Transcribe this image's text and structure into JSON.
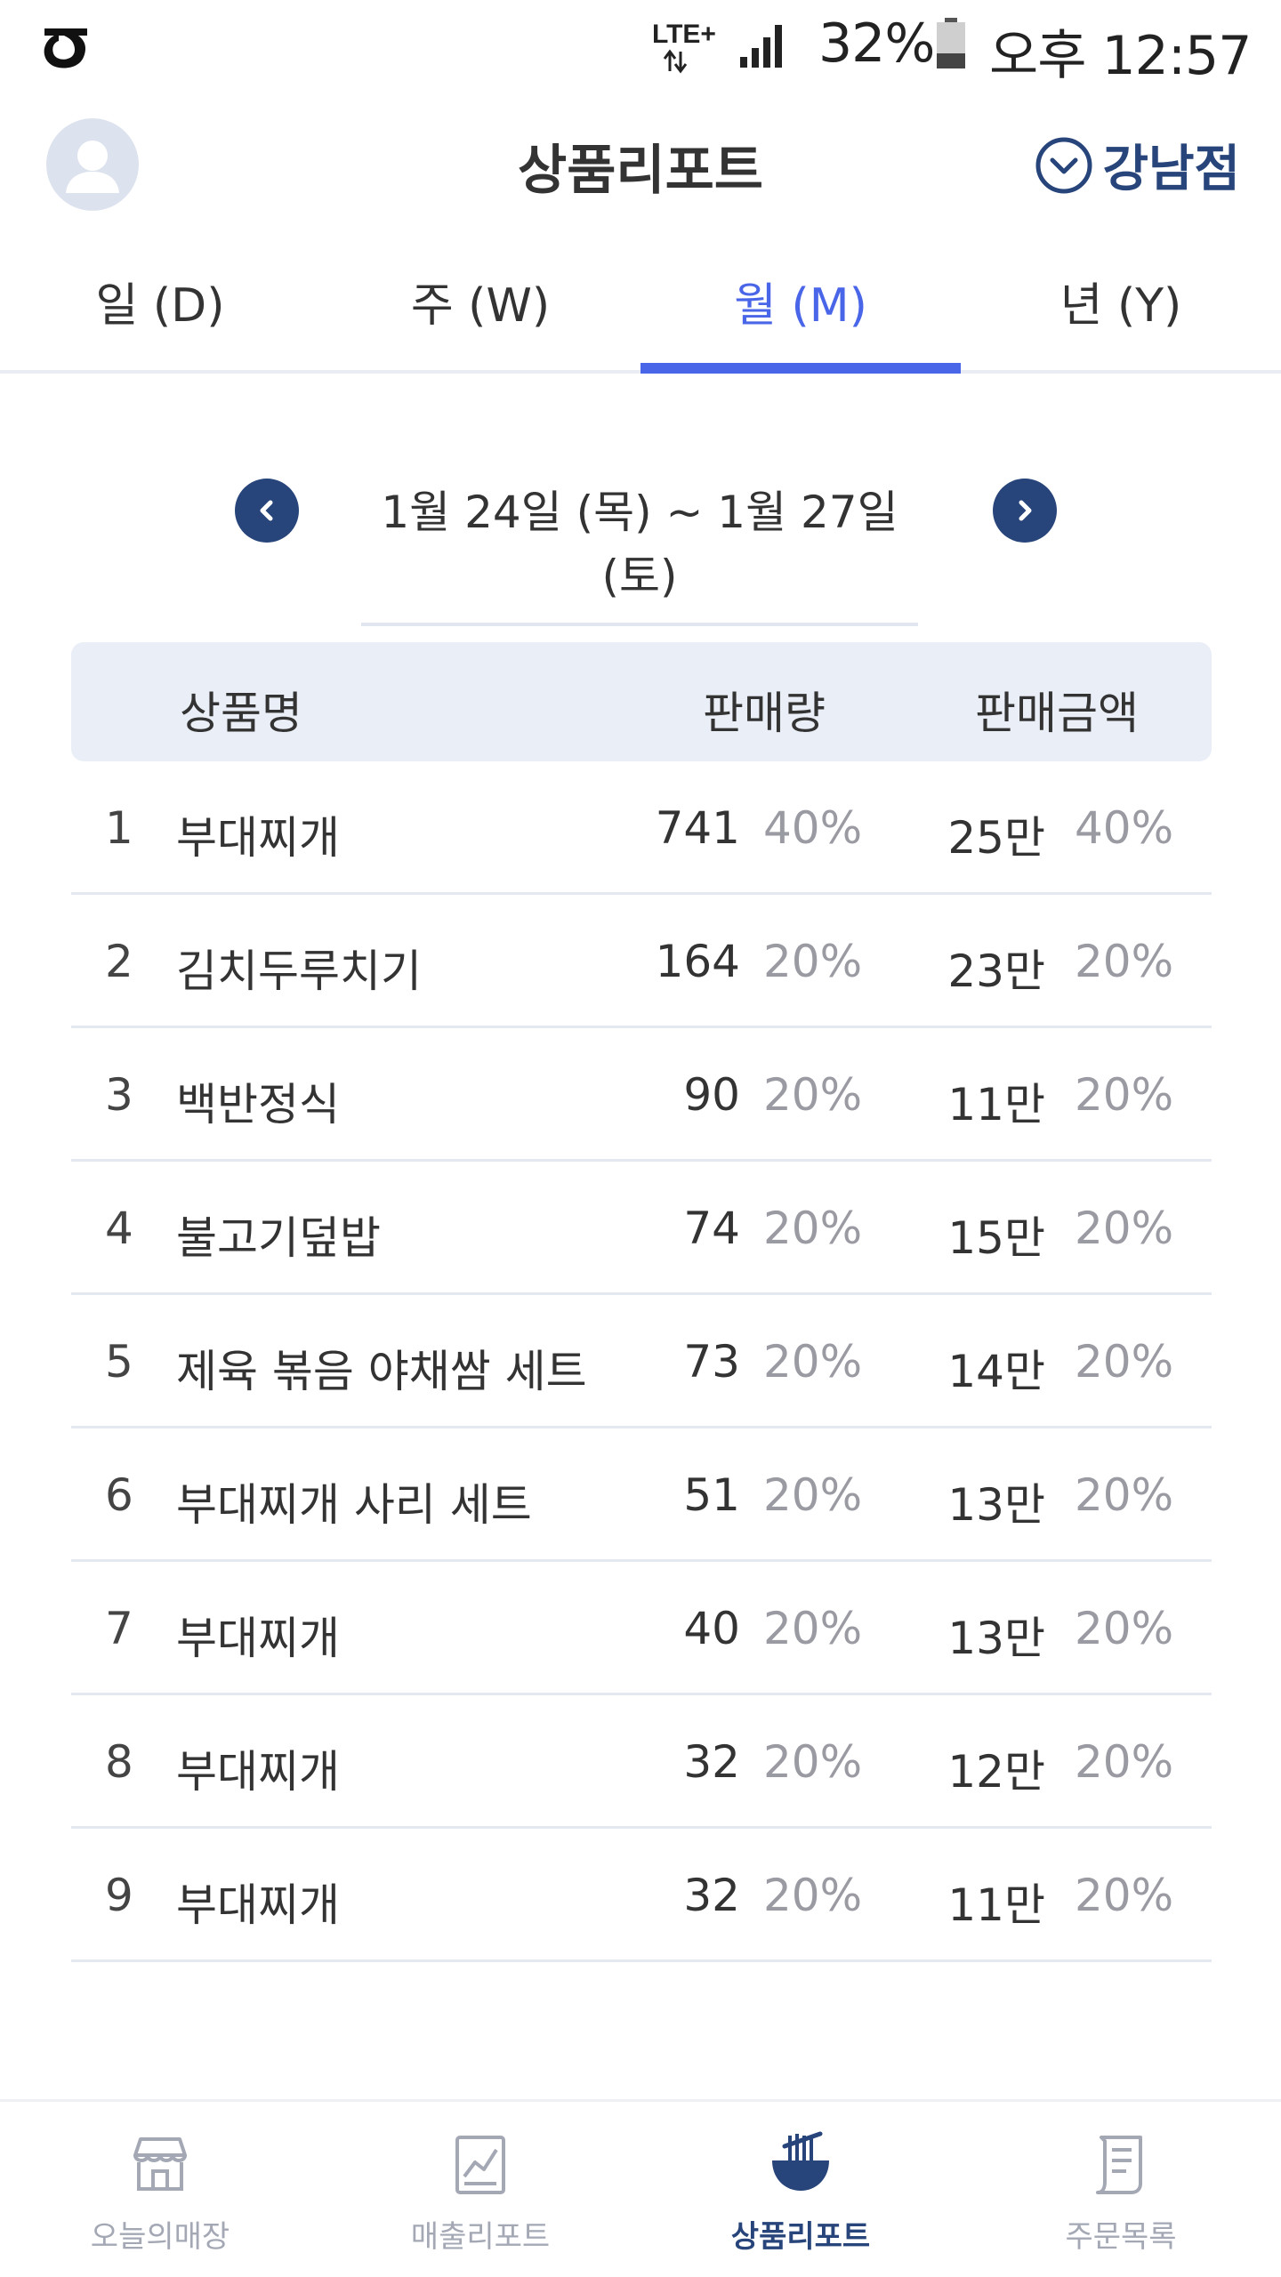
{
  "status_bar": {
    "network": "LTE+",
    "battery": "32%",
    "time": "오후 12:57"
  },
  "header": {
    "title": "상품리포트",
    "store": "강남점"
  },
  "tabs": [
    {
      "label": "일 (D)",
      "active": false
    },
    {
      "label": "주 (W)",
      "active": false
    },
    {
      "label": "월 (M)",
      "active": true
    },
    {
      "label": "년 (Y)",
      "active": false
    }
  ],
  "date_range": "1월  24일 (목) ~ 1월 27일 (토)",
  "table": {
    "headers": {
      "name": "상품명",
      "qty": "판매량",
      "amount": "판매금액"
    },
    "rows": [
      {
        "rank": "1",
        "name": "부대찌개",
        "qty": "741",
        "qty_pct": "40%",
        "amount": "25만",
        "amount_pct": "40%"
      },
      {
        "rank": "2",
        "name": "김치두루치기",
        "qty": "164",
        "qty_pct": "20%",
        "amount": "23만",
        "amount_pct": "20%"
      },
      {
        "rank": "3",
        "name": "백반정식",
        "qty": "90",
        "qty_pct": "20%",
        "amount": "11만",
        "amount_pct": "20%"
      },
      {
        "rank": "4",
        "name": "불고기덮밥",
        "qty": "74",
        "qty_pct": "20%",
        "amount": "15만",
        "amount_pct": "20%"
      },
      {
        "rank": "5",
        "name": "제육 볶음 야채쌈 세트",
        "qty": "73",
        "qty_pct": "20%",
        "amount": "14만",
        "amount_pct": "20%"
      },
      {
        "rank": "6",
        "name": "부대찌개 사리 세트",
        "qty": "51",
        "qty_pct": "20%",
        "amount": "13만",
        "amount_pct": "20%"
      },
      {
        "rank": "7",
        "name": "부대찌개",
        "qty": "40",
        "qty_pct": "20%",
        "amount": "13만",
        "amount_pct": "20%"
      },
      {
        "rank": "8",
        "name": "부대찌개",
        "qty": "32",
        "qty_pct": "20%",
        "amount": "12만",
        "amount_pct": "20%"
      },
      {
        "rank": "9",
        "name": "부대찌개",
        "qty": "32",
        "qty_pct": "20%",
        "amount": "11만",
        "amount_pct": "20%"
      }
    ]
  },
  "bottom_nav": [
    {
      "label": "오늘의매장",
      "icon": "store-icon",
      "active": false
    },
    {
      "label": "매출리포트",
      "icon": "chart-icon",
      "active": false
    },
    {
      "label": "상품리포트",
      "icon": "noodle-bowl-icon",
      "active": true
    },
    {
      "label": "주문목록",
      "icon": "receipt-icon",
      "active": false
    }
  ],
  "colors": {
    "accent": "#4a66e8",
    "navy": "#27457a",
    "header_bg": "#eaeef6",
    "muted": "#9a9aa2"
  }
}
